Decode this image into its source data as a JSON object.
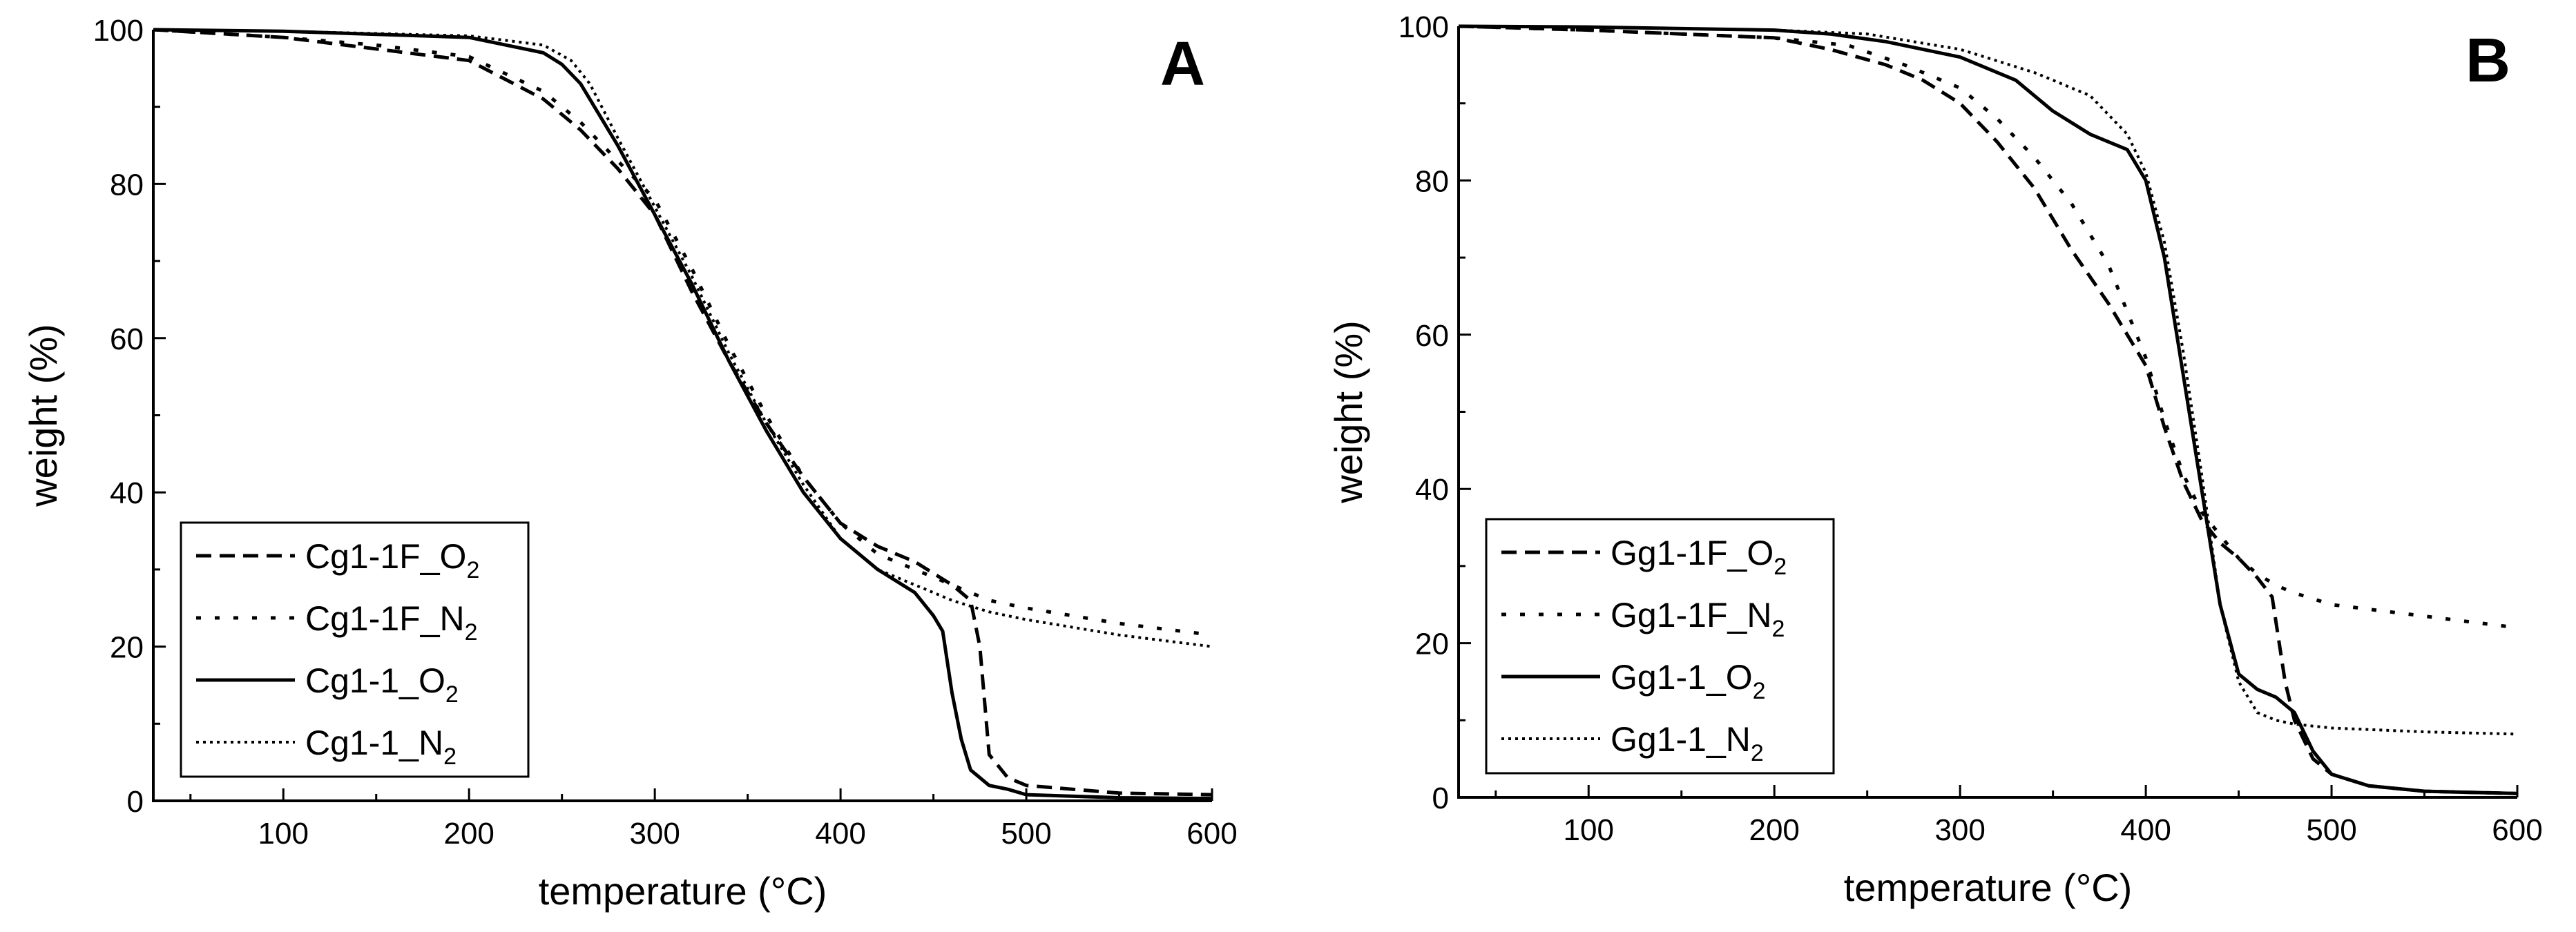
{
  "chart_data": [
    {
      "type": "line",
      "panel": "A",
      "xlabel": "temperature (°C)",
      "ylabel": "weight (%)",
      "xlim": [
        30,
        600
      ],
      "ylim": [
        0,
        100
      ],
      "xticks": [
        100,
        200,
        300,
        400,
        500,
        600
      ],
      "yticks": [
        0,
        20,
        40,
        60,
        80,
        100
      ],
      "legend_position": "bottom-left",
      "series": [
        {
          "name": "Cg1-1F_O2",
          "label_main": "Cg1-1F_O",
          "label_sub": "2",
          "style": "dashed",
          "x": [
            30,
            100,
            150,
            200,
            240,
            260,
            280,
            300,
            320,
            340,
            360,
            380,
            400,
            420,
            440,
            460,
            470,
            475,
            480,
            490,
            500,
            550,
            600
          ],
          "y": [
            100,
            99,
            97.5,
            96,
            91,
            87,
            82,
            76,
            66,
            57,
            49,
            42,
            36,
            33,
            31,
            28,
            26,
            20,
            6,
            3,
            2,
            1,
            0.8
          ]
        },
        {
          "name": "Cg1-1F_N2",
          "label_main": "Cg1-1F_N",
          "label_sub": "2",
          "style": "sparse-dotted",
          "x": [
            30,
            100,
            150,
            200,
            240,
            260,
            280,
            300,
            320,
            340,
            360,
            380,
            400,
            420,
            440,
            460,
            480,
            500,
            550,
            600
          ],
          "y": [
            100,
            99,
            98,
            96.5,
            92,
            88,
            83,
            78,
            69,
            59,
            50,
            42,
            36,
            32,
            30,
            28,
            26,
            25,
            23,
            21.5
          ]
        },
        {
          "name": "Cg1-1_O2",
          "label_main": "Cg1-1_O",
          "label_sub": "2",
          "style": "solid",
          "x": [
            30,
            100,
            200,
            240,
            250,
            260,
            270,
            280,
            300,
            320,
            340,
            360,
            380,
            400,
            420,
            440,
            450,
            455,
            460,
            465,
            470,
            480,
            490,
            500,
            550,
            600
          ],
          "y": [
            100,
            99.8,
            99,
            97,
            95.5,
            93,
            89,
            85,
            76,
            67,
            57,
            48,
            40,
            34,
            30,
            27,
            24,
            22,
            14,
            8,
            4,
            2,
            1.5,
            0.8,
            0.4,
            0.3
          ]
        },
        {
          "name": "Cg1-1_N2",
          "label_main": "Cg1-1_N",
          "label_sub": "2",
          "style": "dense-dotted",
          "x": [
            30,
            100,
            200,
            240,
            255,
            265,
            280,
            300,
            320,
            340,
            360,
            380,
            400,
            420,
            440,
            460,
            480,
            500,
            550,
            600
          ],
          "y": [
            100,
            99.8,
            99.2,
            98,
            96,
            93,
            86,
            77,
            68,
            58,
            49,
            41,
            34,
            30,
            28,
            26,
            24.5,
            23.5,
            21.5,
            20
          ]
        }
      ]
    },
    {
      "type": "line",
      "panel": "B",
      "xlabel": "temperature (°C)",
      "ylabel": "weight (%)",
      "xlim": [
        30,
        600
      ],
      "ylim": [
        0,
        100
      ],
      "xticks": [
        100,
        200,
        300,
        400,
        500,
        600
      ],
      "yticks": [
        0,
        20,
        40,
        60,
        80,
        100
      ],
      "legend_position": "bottom-left",
      "series": [
        {
          "name": "Gg1-1F_O2",
          "label_main": "Gg1-1F_O",
          "label_sub": "2",
          "style": "dashed",
          "x": [
            30,
            100,
            150,
            200,
            230,
            260,
            280,
            300,
            320,
            340,
            360,
            380,
            400,
            410,
            420,
            430,
            440,
            450,
            460,
            468,
            475,
            480,
            490,
            500,
            520,
            550,
            600
          ],
          "y": [
            100,
            99.5,
            99,
            98.5,
            97,
            95,
            93,
            90,
            85,
            79,
            71,
            64,
            56,
            48,
            41,
            36,
            33,
            31,
            28.5,
            26,
            15,
            10,
            5,
            3,
            1.5,
            0.8,
            0.5
          ]
        },
        {
          "name": "Gg1-1F_N2",
          "label_main": "Gg1-1F_N",
          "label_sub": "2",
          "style": "sparse-dotted",
          "x": [
            30,
            100,
            200,
            240,
            270,
            300,
            320,
            340,
            360,
            380,
            400,
            410,
            420,
            430,
            440,
            450,
            460,
            470,
            480,
            500,
            550,
            600
          ],
          "y": [
            100,
            99.5,
            98.5,
            97.5,
            95,
            92,
            88,
            83,
            77,
            69,
            57,
            49,
            42,
            37,
            34,
            31,
            29,
            27.5,
            26.5,
            25,
            23.5,
            22
          ]
        },
        {
          "name": "Gg1-1_O2",
          "label_main": "Gg1-1_O",
          "label_sub": "2",
          "style": "solid",
          "x": [
            30,
            100,
            200,
            230,
            260,
            300,
            330,
            350,
            370,
            380,
            390,
            395,
            400,
            410,
            420,
            430,
            440,
            450,
            460,
            470,
            480,
            490,
            500,
            520,
            550,
            600
          ],
          "y": [
            100,
            99.9,
            99.5,
            99,
            98,
            96,
            93,
            89,
            86,
            85,
            84,
            82,
            80,
            70,
            55,
            40,
            25,
            16,
            14,
            13,
            11,
            6,
            3,
            1.5,
            0.8,
            0.5
          ]
        },
        {
          "name": "Gg1-1_N2",
          "label_main": "Gg1-1_N",
          "label_sub": "2",
          "style": "dense-dotted",
          "x": [
            30,
            100,
            200,
            250,
            300,
            340,
            370,
            390,
            400,
            410,
            420,
            430,
            440,
            450,
            460,
            470,
            480,
            500,
            550,
            600
          ],
          "y": [
            100,
            99.9,
            99.5,
            99,
            97,
            94,
            91,
            86,
            81,
            72,
            58,
            42,
            25,
            15,
            11,
            10,
            9.5,
            9,
            8.5,
            8.2
          ]
        }
      ]
    }
  ],
  "panels": [
    {
      "label": "A"
    },
    {
      "label": "B"
    }
  ]
}
